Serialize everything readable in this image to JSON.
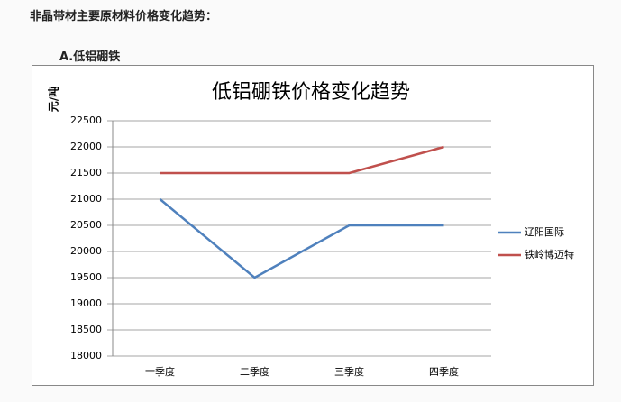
{
  "heading": "非晶带材主要原材料价格变化趋势：",
  "section": "A.低铝硼铁",
  "chart_data": {
    "type": "line",
    "title": "低铝硼铁价格变化趋势",
    "y_label": "元/吨",
    "categories": [
      "一季度",
      "二季度",
      "三季度",
      "四季度"
    ],
    "series": [
      {
        "name": "辽阳国际",
        "color": "#4f81bd",
        "values": [
          21000,
          19500,
          20500,
          20500
        ]
      },
      {
        "name": "铁岭博迈特",
        "color": "#c0504d",
        "values": [
          21500,
          21500,
          21500,
          22000
        ]
      }
    ],
    "ylim": [
      18000,
      22500
    ],
    "yticks": [
      18000,
      18500,
      19000,
      19500,
      20000,
      20500,
      21000,
      21500,
      22000,
      22500
    ],
    "grid": true,
    "legend": "right"
  }
}
